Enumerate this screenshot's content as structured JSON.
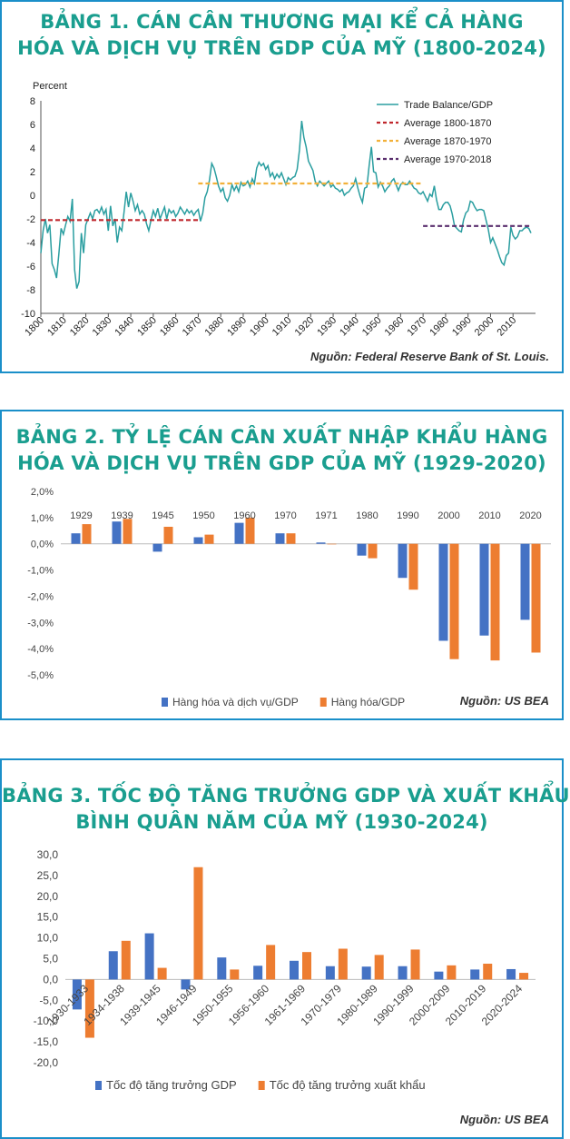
{
  "chart_data": [
    {
      "type": "line",
      "title": [
        "BẢNG 1. CÁN CÂN THƯƠNG MẠI KỂ CẢ HÀNG",
        "HÓA VÀ DỊCH VỤ TRÊN GDP CỦA MỸ (1800-2024)"
      ],
      "ylabel": "Percent",
      "ylim": [
        -10,
        8
      ],
      "yticks": [
        "8",
        "6",
        "4",
        "2",
        "0",
        "-2",
        "-4",
        "-6",
        "-8",
        "-10"
      ],
      "xlim": [
        1800,
        2020
      ],
      "xticks": [
        "1800",
        "1810",
        "1820",
        "1830",
        "1840",
        "1850",
        "1860",
        "1870",
        "1880",
        "1890",
        "1900",
        "1910",
        "1920",
        "1930",
        "1940",
        "1950",
        "1960",
        "1970",
        "1980",
        "1990",
        "2000",
        "2010"
      ],
      "legend_position": "top-right",
      "series": [
        {
          "name": "Trade Balance/GDP",
          "color": "#2a9ea0",
          "points": [
            [
              1800,
              -4.9
            ],
            [
              1801,
              -3.0
            ],
            [
              1802,
              -2.0
            ],
            [
              1803,
              -3.2
            ],
            [
              1804,
              -2.5
            ],
            [
              1805,
              -5.8
            ],
            [
              1806,
              -6.3
            ],
            [
              1807,
              -7.0
            ],
            [
              1808,
              -5.0
            ],
            [
              1809,
              -2.8
            ],
            [
              1810,
              -3.3
            ],
            [
              1811,
              -2.5
            ],
            [
              1812,
              -1.8
            ],
            [
              1813,
              -2.2
            ],
            [
              1814,
              -0.3
            ],
            [
              1815,
              -6.3
            ],
            [
              1816,
              -7.9
            ],
            [
              1817,
              -7.3
            ],
            [
              1818,
              -3.2
            ],
            [
              1819,
              -4.9
            ],
            [
              1820,
              -2.5
            ],
            [
              1821,
              -2.0
            ],
            [
              1822,
              -1.5
            ],
            [
              1823,
              -2.0
            ],
            [
              1824,
              -1.3
            ],
            [
              1825,
              -1.2
            ],
            [
              1826,
              -1.5
            ],
            [
              1827,
              -1.0
            ],
            [
              1828,
              -1.6
            ],
            [
              1829,
              -1.2
            ],
            [
              1830,
              -3.0
            ],
            [
              1831,
              -0.9
            ],
            [
              1832,
              -2.6
            ],
            [
              1833,
              -2.0
            ],
            [
              1834,
              -4.0
            ],
            [
              1835,
              -2.7
            ],
            [
              1836,
              -3.0
            ],
            [
              1837,
              -1.4
            ],
            [
              1838,
              0.3
            ],
            [
              1839,
              -1.0
            ],
            [
              1840,
              0.2
            ],
            [
              1841,
              -0.5
            ],
            [
              1842,
              -1.3
            ],
            [
              1843,
              -0.8
            ],
            [
              1844,
              -1.6
            ],
            [
              1845,
              -1.3
            ],
            [
              1846,
              -1.6
            ],
            [
              1847,
              -2.4
            ],
            [
              1848,
              -3.0
            ],
            [
              1849,
              -2.1
            ],
            [
              1850,
              -1.3
            ],
            [
              1851,
              -1.8
            ],
            [
              1852,
              -1.1
            ],
            [
              1853,
              -2.0
            ],
            [
              1854,
              -1.5
            ],
            [
              1855,
              -1.0
            ],
            [
              1856,
              -2.0
            ],
            [
              1857,
              -1.2
            ],
            [
              1858,
              -1.5
            ],
            [
              1859,
              -1.3
            ],
            [
              1860,
              -1.8
            ],
            [
              1861,
              -1.5
            ],
            [
              1862,
              -1.0
            ],
            [
              1863,
              -1.3
            ],
            [
              1864,
              -1.6
            ],
            [
              1865,
              -1.2
            ],
            [
              1866,
              -1.5
            ],
            [
              1867,
              -1.3
            ],
            [
              1868,
              -1.7
            ],
            [
              1869,
              -1.4
            ],
            [
              1870,
              -1.2
            ],
            [
              1871,
              -2.2
            ],
            [
              1872,
              -1.5
            ],
            [
              1873,
              -0.2
            ],
            [
              1874,
              0.3
            ],
            [
              1875,
              1.3
            ],
            [
              1876,
              2.7
            ],
            [
              1877,
              2.3
            ],
            [
              1878,
              1.6
            ],
            [
              1879,
              0.8
            ],
            [
              1880,
              0.3
            ],
            [
              1881,
              0.6
            ],
            [
              1882,
              -0.2
            ],
            [
              1883,
              -0.5
            ],
            [
              1884,
              0.0
            ],
            [
              1885,
              0.9
            ],
            [
              1886,
              0.4
            ],
            [
              1887,
              0.8
            ],
            [
              1888,
              0.3
            ],
            [
              1889,
              1.1
            ],
            [
              1890,
              0.8
            ],
            [
              1891,
              0.9
            ],
            [
              1892,
              1.2
            ],
            [
              1893,
              0.7
            ],
            [
              1894,
              1.4
            ],
            [
              1895,
              1.0
            ],
            [
              1896,
              2.3
            ],
            [
              1897,
              2.8
            ],
            [
              1898,
              2.5
            ],
            [
              1899,
              2.7
            ],
            [
              1900,
              2.2
            ],
            [
              1901,
              2.5
            ],
            [
              1902,
              1.6
            ],
            [
              1903,
              1.9
            ],
            [
              1904,
              1.4
            ],
            [
              1905,
              1.8
            ],
            [
              1906,
              1.5
            ],
            [
              1907,
              1.9
            ],
            [
              1908,
              1.4
            ],
            [
              1909,
              0.9
            ],
            [
              1910,
              1.5
            ],
            [
              1911,
              1.3
            ],
            [
              1912,
              1.5
            ],
            [
              1913,
              1.6
            ],
            [
              1914,
              2.2
            ],
            [
              1915,
              3.8
            ],
            [
              1916,
              6.3
            ],
            [
              1917,
              4.9
            ],
            [
              1918,
              4.1
            ],
            [
              1919,
              2.9
            ],
            [
              1920,
              2.5
            ],
            [
              1921,
              2.1
            ],
            [
              1922,
              1.2
            ],
            [
              1923,
              0.8
            ],
            [
              1924,
              1.2
            ],
            [
              1925,
              1.0
            ],
            [
              1926,
              0.8
            ],
            [
              1927,
              1.0
            ],
            [
              1928,
              1.2
            ],
            [
              1929,
              0.7
            ],
            [
              1930,
              0.9
            ],
            [
              1931,
              0.6
            ],
            [
              1932,
              0.5
            ],
            [
              1933,
              0.3
            ],
            [
              1934,
              0.5
            ],
            [
              1935,
              0.0
            ],
            [
              1936,
              0.2
            ],
            [
              1937,
              0.3
            ],
            [
              1938,
              0.6
            ],
            [
              1939,
              0.8
            ],
            [
              1940,
              1.4
            ],
            [
              1941,
              0.6
            ],
            [
              1942,
              -0.1
            ],
            [
              1943,
              -0.6
            ],
            [
              1944,
              0.6
            ],
            [
              1945,
              0.7
            ],
            [
              1946,
              2.5
            ],
            [
              1947,
              4.1
            ],
            [
              1948,
              2.0
            ],
            [
              1949,
              1.9
            ],
            [
              1950,
              0.7
            ],
            [
              1951,
              1.1
            ],
            [
              1952,
              0.8
            ],
            [
              1953,
              0.3
            ],
            [
              1954,
              0.6
            ],
            [
              1955,
              0.8
            ],
            [
              1956,
              1.2
            ],
            [
              1957,
              1.4
            ],
            [
              1958,
              0.9
            ],
            [
              1959,
              0.4
            ],
            [
              1960,
              0.9
            ],
            [
              1961,
              1.1
            ],
            [
              1962,
              0.9
            ],
            [
              1963,
              0.9
            ],
            [
              1964,
              1.2
            ],
            [
              1965,
              0.9
            ],
            [
              1966,
              0.6
            ],
            [
              1967,
              0.5
            ],
            [
              1968,
              0.2
            ],
            [
              1969,
              0.1
            ],
            [
              1970,
              0.3
            ],
            [
              1971,
              -0.1
            ],
            [
              1972,
              -0.5
            ],
            [
              1973,
              0.1
            ],
            [
              1974,
              -0.1
            ],
            [
              1975,
              0.8
            ],
            [
              1976,
              -0.4
            ],
            [
              1977,
              -1.2
            ],
            [
              1978,
              -1.2
            ],
            [
              1979,
              -0.8
            ],
            [
              1980,
              -0.6
            ],
            [
              1981,
              -0.6
            ],
            [
              1982,
              -0.9
            ],
            [
              1983,
              -1.6
            ],
            [
              1984,
              -2.6
            ],
            [
              1985,
              -2.8
            ],
            [
              1986,
              -3.0
            ],
            [
              1987,
              -3.1
            ],
            [
              1988,
              -2.1
            ],
            [
              1989,
              -1.5
            ],
            [
              1990,
              -1.3
            ],
            [
              1991,
              -0.5
            ],
            [
              1992,
              -0.6
            ],
            [
              1993,
              -1.0
            ],
            [
              1994,
              -1.3
            ],
            [
              1995,
              -1.2
            ],
            [
              1996,
              -1.2
            ],
            [
              1997,
              -1.3
            ],
            [
              1998,
              -2.1
            ],
            [
              1999,
              -2.9
            ],
            [
              2000,
              -4.0
            ],
            [
              2001,
              -3.6
            ],
            [
              2002,
              -4.1
            ],
            [
              2003,
              -4.6
            ],
            [
              2004,
              -5.2
            ],
            [
              2005,
              -5.7
            ],
            [
              2006,
              -5.9
            ],
            [
              2007,
              -5.1
            ],
            [
              2008,
              -4.9
            ],
            [
              2009,
              -2.7
            ],
            [
              2010,
              -3.4
            ],
            [
              2011,
              -3.7
            ],
            [
              2012,
              -3.5
            ],
            [
              2013,
              -3.0
            ],
            [
              2014,
              -3.0
            ],
            [
              2015,
              -2.8
            ],
            [
              2016,
              -2.7
            ],
            [
              2017,
              -2.8
            ],
            [
              2018,
              -3.2
            ]
          ]
        },
        {
          "name": "Average 1800-1870",
          "color": "#c0282e",
          "dash": true,
          "points": [
            [
              1800,
              -2.1
            ],
            [
              1870,
              -2.1
            ]
          ]
        },
        {
          "name": "Average 1870-1970",
          "color": "#f2b13a",
          "dash": true,
          "points": [
            [
              1870,
              1.0
            ],
            [
              1970,
              1.0
            ]
          ]
        },
        {
          "name": "Average 1970-2018",
          "color": "#5a2f6e",
          "dash": true,
          "points": [
            [
              1970,
              -2.6
            ],
            [
              2018,
              -2.6
            ]
          ]
        }
      ],
      "source": "Nguồn: Federal Reserve Bank of St. Louis."
    },
    {
      "type": "bar",
      "title": [
        "BẢNG 2. TỶ LỆ CÁN CÂN XUẤT NHẬP KHẨU HÀNG",
        "HÓA VÀ DỊCH VỤ TRÊN GDP CỦA MỸ (1929-2020)"
      ],
      "ylim": [
        -5,
        2
      ],
      "yticks": [
        "2,0%",
        "1,0%",
        "0,0%",
        "-1,0%",
        "-2,0%",
        "-3,0%",
        "-4,0%",
        "-5,0%"
      ],
      "categories": [
        "1929",
        "1939",
        "1945",
        "1950",
        "1960",
        "1970",
        "1971",
        "1980",
        "1990",
        "2000",
        "2010",
        "2020"
      ],
      "legend_position": "bottom",
      "series": [
        {
          "name": "Hàng hóa và dịch vụ/GDP",
          "color": "#4472c4",
          "values": [
            0.4,
            0.85,
            -0.3,
            0.25,
            0.8,
            0.4,
            0.05,
            -0.45,
            -1.3,
            -3.7,
            -3.5,
            -2.9
          ]
        },
        {
          "name": "Hàng hóa/GDP",
          "color": "#ed7d31",
          "values": [
            0.75,
            0.95,
            0.65,
            0.35,
            1.0,
            0.4,
            0.0,
            -0.55,
            -1.75,
            -4.4,
            -4.45,
            -4.15
          ]
        }
      ],
      "source": "Nguồn: US BEA"
    },
    {
      "type": "bar",
      "title": [
        "BẢNG 3. TỐC ĐỘ TĂNG TRƯỞNG GDP VÀ XUẤT KHẨU",
        "BÌNH QUÂN NĂM CỦA MỸ (1930-2024)"
      ],
      "ylim": [
        -20,
        30
      ],
      "yticks": [
        "30,0",
        "25,0",
        "20,0",
        "15,0",
        "10,0",
        "5,0",
        "0,0",
        "-5,0",
        "-10,0",
        "-15,0",
        "-20,0"
      ],
      "categories": [
        "1930-1933",
        "1934-1938",
        "1939-1945",
        "1946-1949",
        "1950-1955",
        "1956-1960",
        "1961-1969",
        "1970-1979",
        "1980-1989",
        "1990-1999",
        "2000-2009",
        "2010-2019",
        "2020-2024"
      ],
      "legend_position": "bottom",
      "series": [
        {
          "name": "Tốc độ tăng trưởng GDP",
          "color": "#4472c4",
          "values": [
            -7.2,
            6.8,
            11.1,
            -2.4,
            5.3,
            3.3,
            4.5,
            3.2,
            3.1,
            3.2,
            1.9,
            2.4,
            2.5
          ]
        },
        {
          "name": "Tốc độ tăng trưởng xuất khẩu",
          "color": "#ed7d31",
          "values": [
            -14.0,
            9.3,
            2.8,
            27.0,
            2.4,
            8.3,
            6.6,
            7.4,
            5.9,
            7.2,
            3.4,
            3.8,
            1.6
          ]
        }
      ],
      "source": "Nguồn: US BEA"
    }
  ]
}
